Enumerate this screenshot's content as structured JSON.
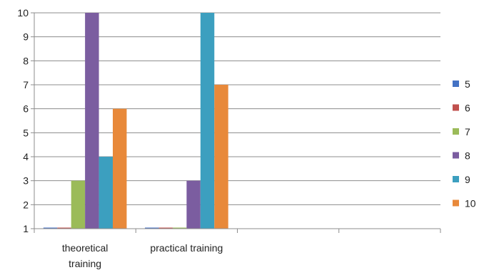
{
  "chart_data": {
    "type": "bar",
    "title": "",
    "xlabel": "",
    "ylabel": "",
    "categories": [
      [
        "theoretical",
        "training"
      ],
      [
        "practical training"
      ],
      [
        ""
      ],
      [
        ""
      ]
    ],
    "ylim": [
      1,
      10
    ],
    "yticks": [
      "1",
      "2",
      "3",
      "4",
      "5",
      "6",
      "7",
      "8",
      "9",
      "10"
    ],
    "grid": "horizontal",
    "legend": "right",
    "series": [
      {
        "name": "5",
        "color": "#4472c4",
        "values": [
          1,
          1,
          null,
          null
        ]
      },
      {
        "name": "6",
        "color": "#c0504d",
        "values": [
          1,
          1,
          null,
          null
        ]
      },
      {
        "name": "7",
        "color": "#9bbb59",
        "values": [
          3,
          1,
          null,
          null
        ]
      },
      {
        "name": "8",
        "color": "#7b5da0",
        "values": [
          10,
          3,
          null,
          null
        ]
      },
      {
        "name": "9",
        "color": "#3c9fbf",
        "values": [
          4,
          10,
          null,
          null
        ]
      },
      {
        "name": "10",
        "color": "#e8893a",
        "values": [
          6,
          7,
          null,
          null
        ]
      }
    ]
  }
}
